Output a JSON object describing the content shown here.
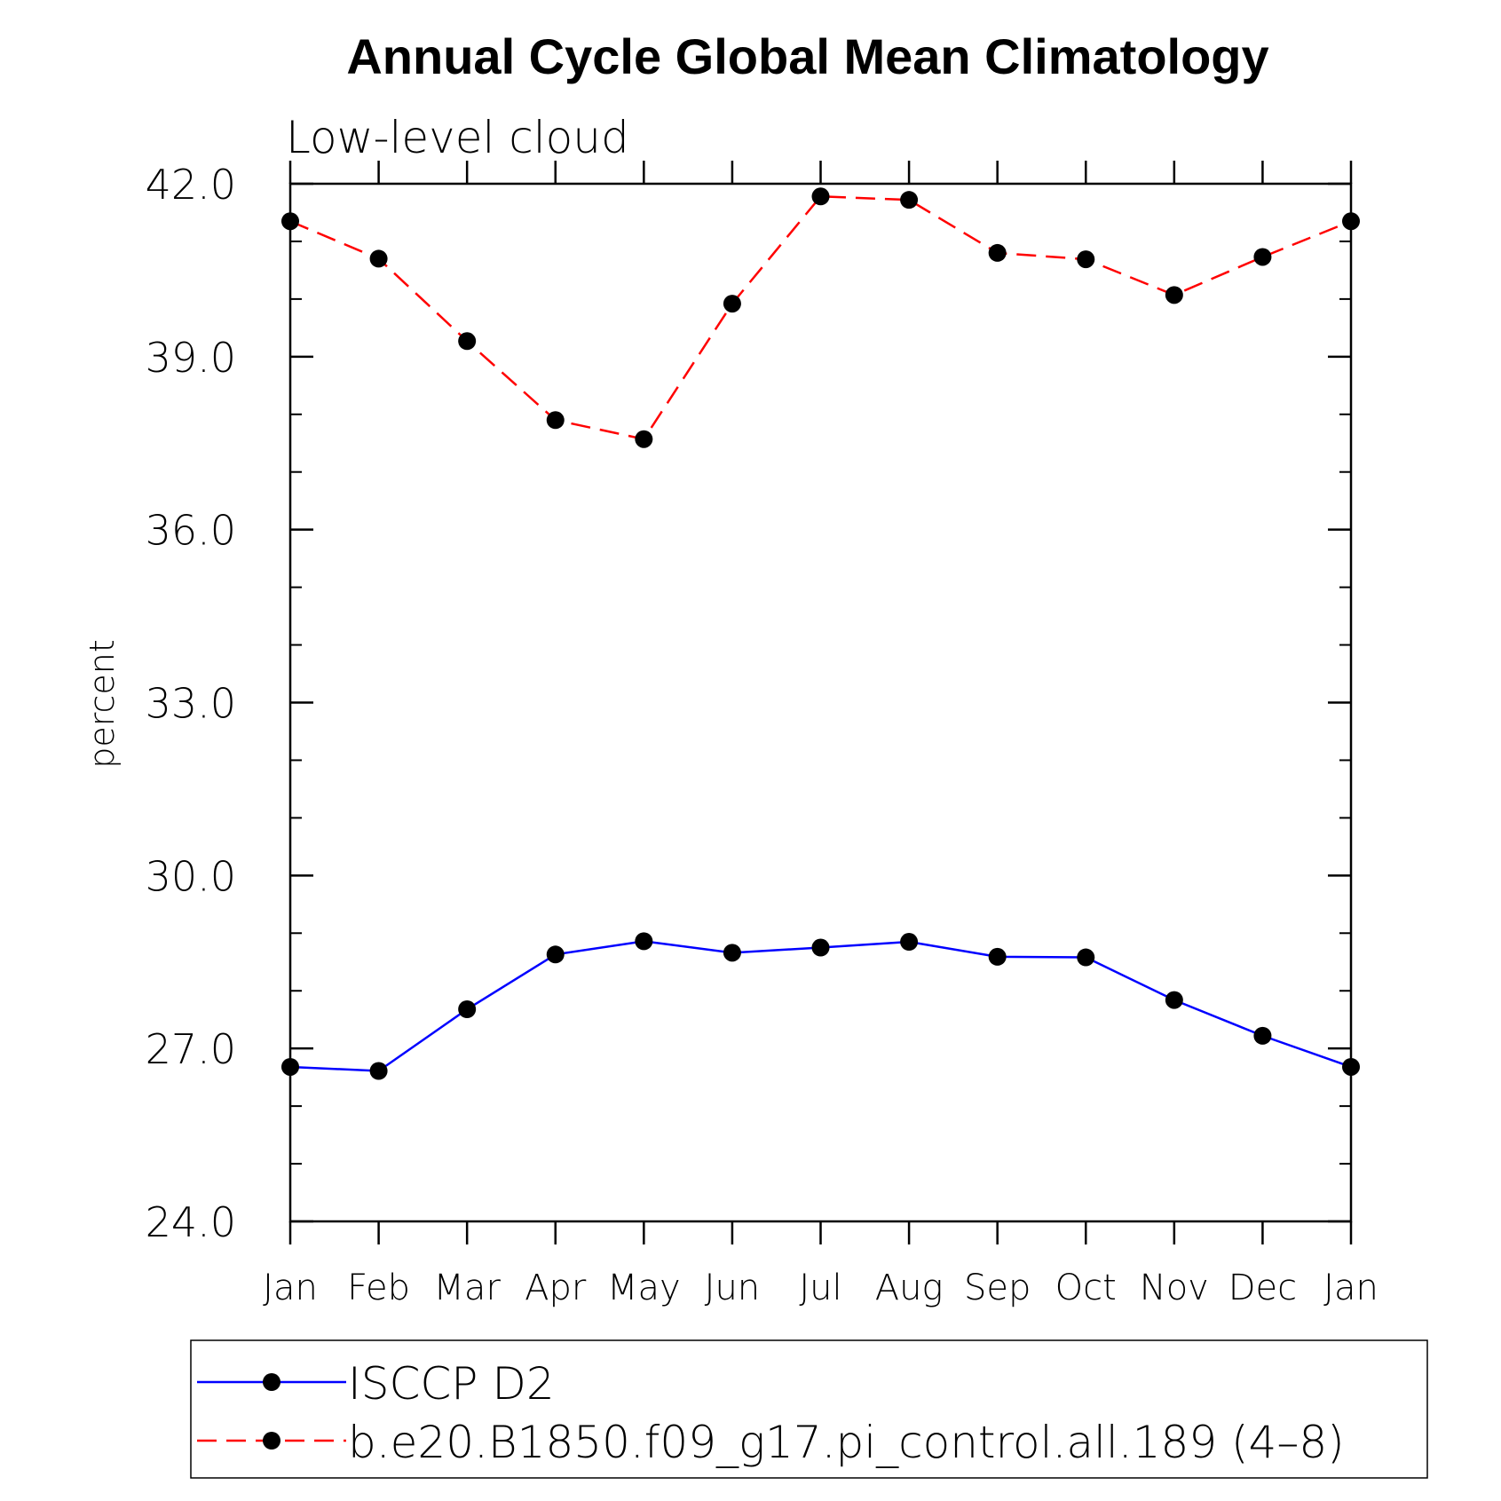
{
  "chart_data": {
    "type": "line",
    "title": "Annual Cycle Global Mean Climatology",
    "subtitle": "Low-level cloud",
    "xlabel": "",
    "ylabel": "percent",
    "categories": [
      "Jan",
      "Feb",
      "Mar",
      "Apr",
      "May",
      "Jun",
      "Jul",
      "Aug",
      "Sep",
      "Oct",
      "Nov",
      "Dec",
      "Jan"
    ],
    "ylim": [
      24.0,
      42.0
    ],
    "yticks": [
      "24.0",
      "27.0",
      "30.0",
      "33.0",
      "36.0",
      "39.0",
      "42.0"
    ],
    "grid": false,
    "legend_position": "bottom",
    "series": [
      {
        "name": "ISCCP D2",
        "color": "#0000ff",
        "style": "solid",
        "marker": "circle",
        "values": [
          26.68,
          26.61,
          27.68,
          28.63,
          28.86,
          28.66,
          28.75,
          28.85,
          28.59,
          28.58,
          27.84,
          27.22,
          26.68
        ]
      },
      {
        "name": "b.e20.B1850.f09_g17.pi_control.all.189 (4–8)",
        "color": "#ff0000",
        "style": "dashed",
        "marker": "circle",
        "values": [
          41.35,
          40.7,
          39.27,
          37.9,
          37.57,
          39.92,
          41.78,
          41.72,
          40.8,
          40.69,
          40.07,
          40.73,
          41.35
        ]
      }
    ]
  }
}
